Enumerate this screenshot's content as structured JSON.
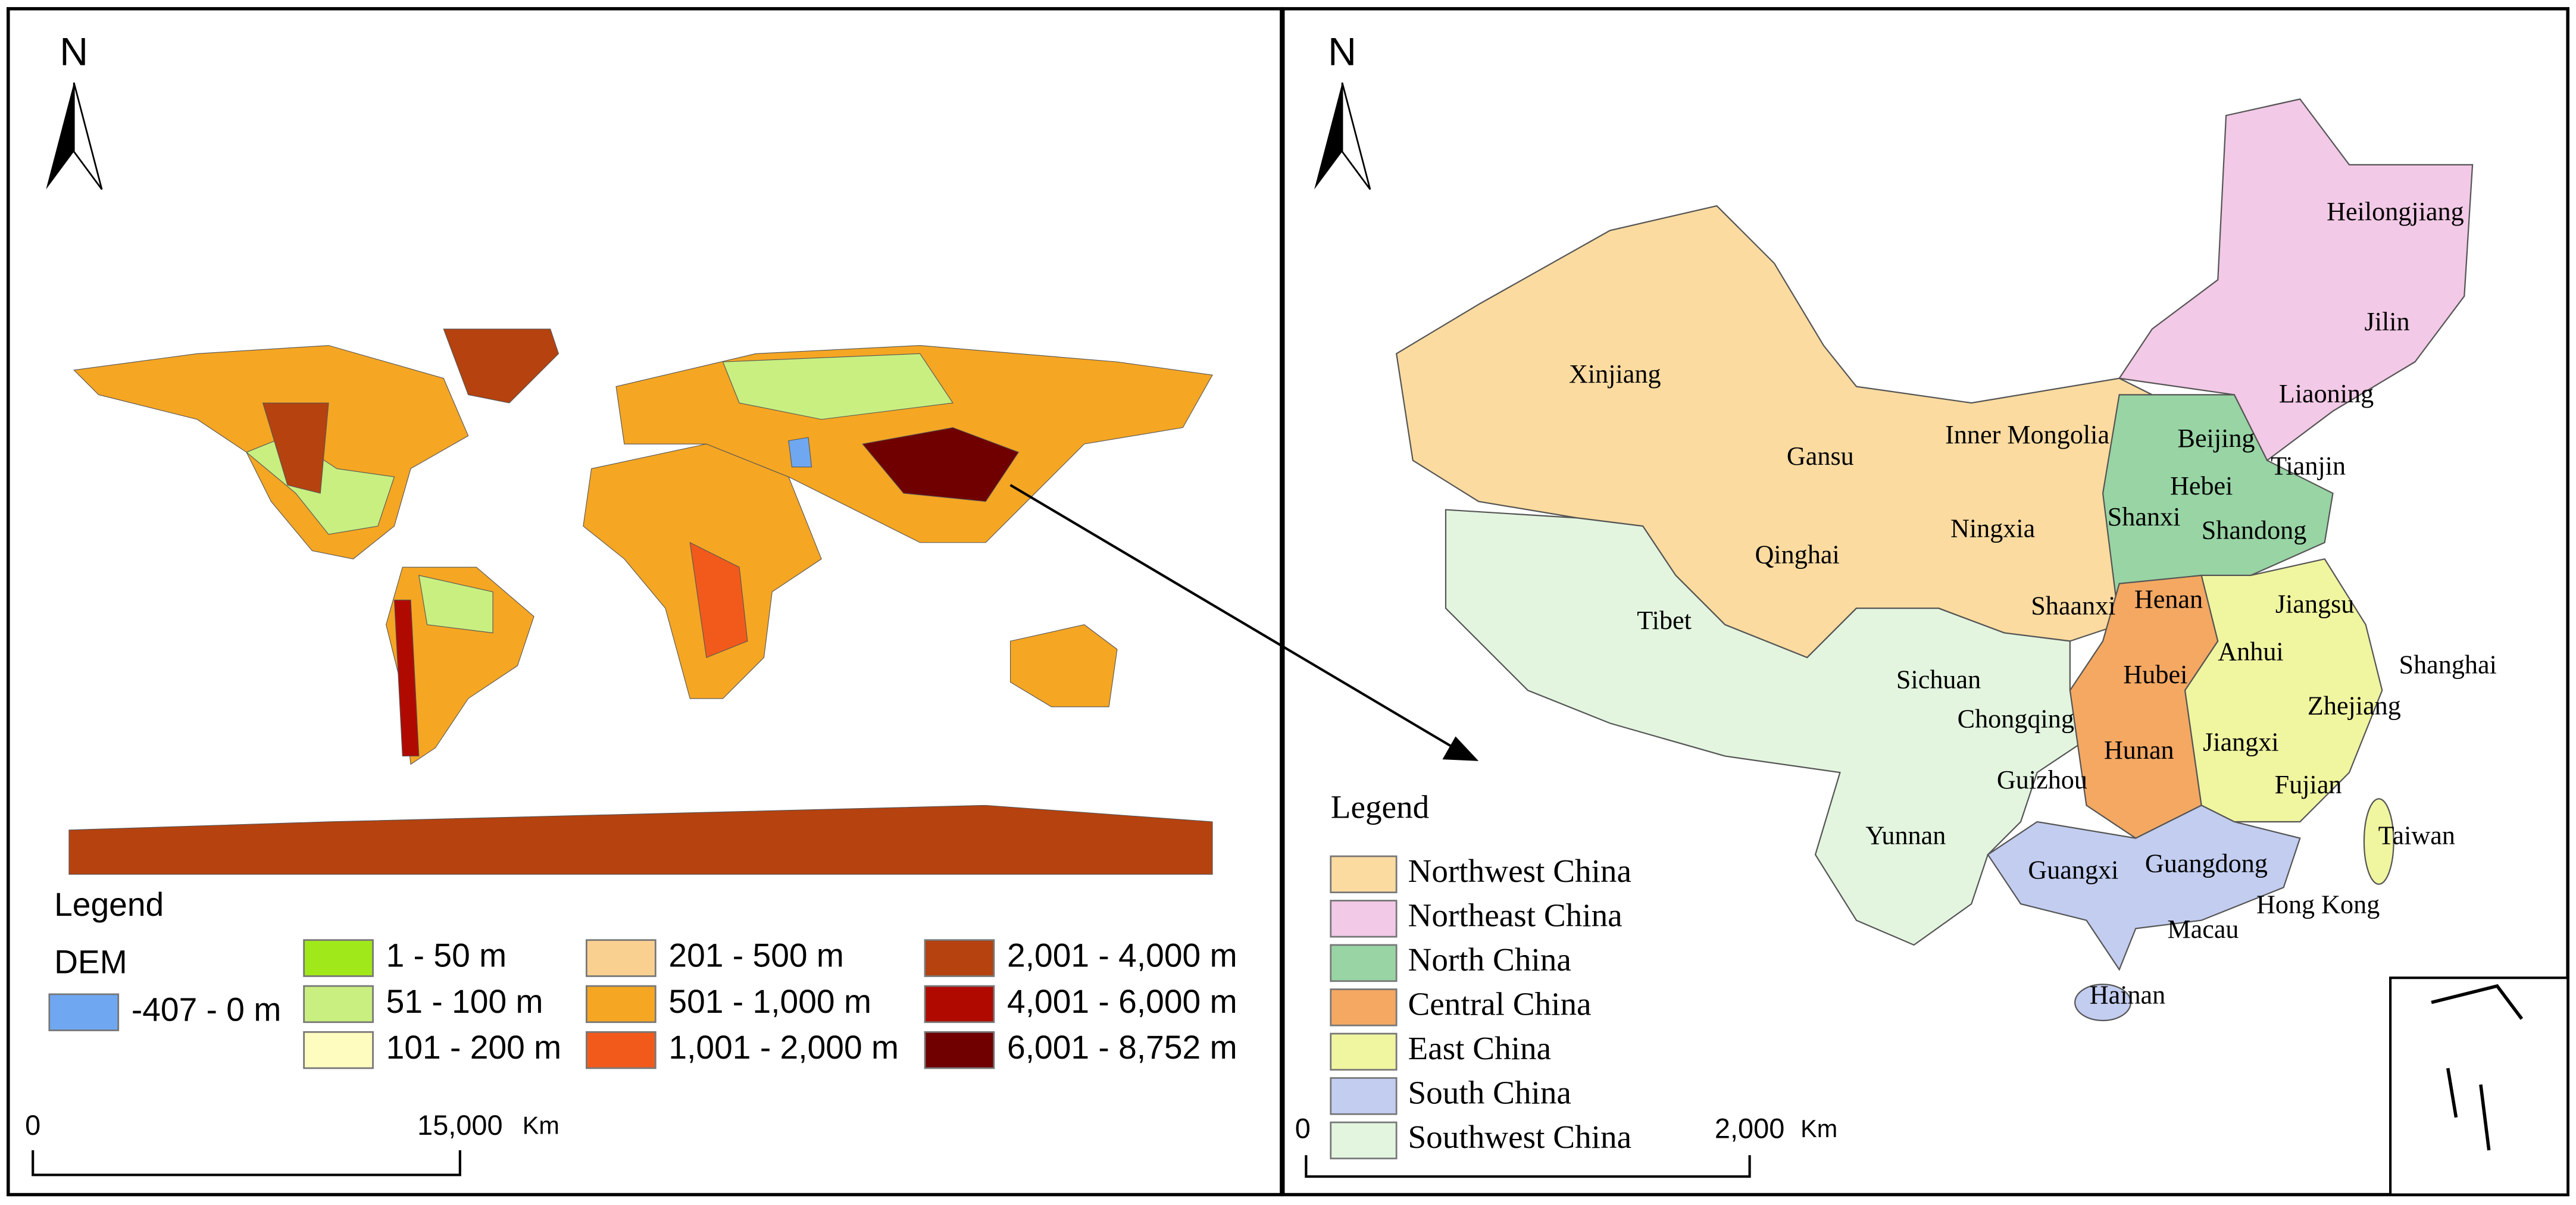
{
  "world_panel": {
    "north": "N",
    "legend": {
      "title": "Legend",
      "group": "DEM",
      "items": [
        {
          "label": "-407 - 0 m",
          "color": "#6fa8f0"
        },
        {
          "label": "1 - 50 m",
          "color": "#a0e81a"
        },
        {
          "label": "51 - 100 m",
          "color": "#c8ef80"
        },
        {
          "label": "101 - 200 m",
          "color": "#fffcc0"
        },
        {
          "label": "201 - 500 m",
          "color": "#fad090"
        },
        {
          "label": "501 - 1,000 m",
          "color": "#f5a623"
        },
        {
          "label": "1,001 - 2,000 m",
          "color": "#f25a1c"
        },
        {
          "label": "2,001 - 4,000 m",
          "color": "#b5420f"
        },
        {
          "label": "4,001 - 6,000 m",
          "color": "#b00a00"
        },
        {
          "label": "6,001 - 8,752 m",
          "color": "#700000"
        }
      ]
    },
    "scale_bar": {
      "start": "0",
      "end": "15,000",
      "unit": "Km"
    }
  },
  "china_panel": {
    "north": "N",
    "provinces": [
      "Xinjiang",
      "Gansu",
      "Inner Mongolia",
      "Heilongjiang",
      "Jilin",
      "Liaoning",
      "Beijing",
      "Tianjin",
      "Hebei",
      "Shanxi",
      "Shandong",
      "Qinghai",
      "Ningxia",
      "Tibet",
      "Shaanxi",
      "Henan",
      "Jiangsu",
      "Anhui",
      "Shanghai",
      "Sichuan",
      "Hubei",
      "Chongqing",
      "Zhejiang",
      "Hunan",
      "Jiangxi",
      "Guizhou",
      "Fujian",
      "Yunnan",
      "Taiwan",
      "Guangxi",
      "Guangdong",
      "Hong Kong",
      "Macau",
      "Hainan"
    ],
    "legend": {
      "title": "Legend",
      "items": [
        {
          "label": "Northwest China",
          "color": "#fbdba0"
        },
        {
          "label": "Northeast China",
          "color": "#f2c9e6"
        },
        {
          "label": "North China",
          "color": "#98d4a4"
        },
        {
          "label": "Central China",
          "color": "#f4a862"
        },
        {
          "label": "East China",
          "color": "#f0f5a0"
        },
        {
          "label": "South China",
          "color": "#c2cdf0"
        },
        {
          "label": "Southwest China",
          "color": "#e3f5df"
        }
      ]
    },
    "scale_bar": {
      "start": "0",
      "end": "2,000",
      "unit": "Km"
    }
  }
}
